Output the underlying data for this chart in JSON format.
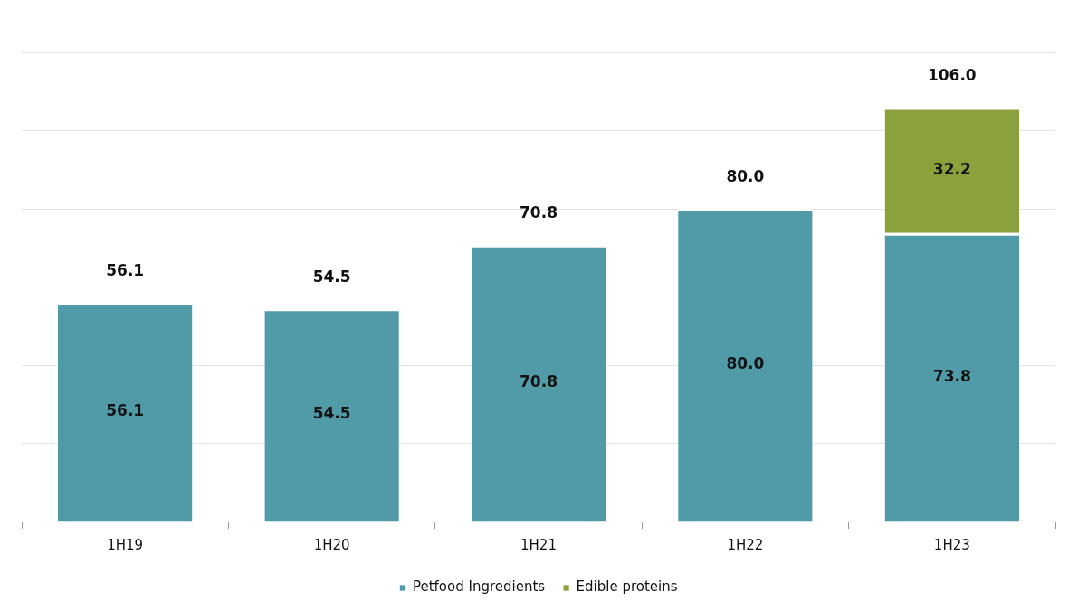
{
  "chart_data": {
    "type": "bar",
    "stacked": true,
    "categories": [
      "1H19",
      "1H20",
      "1H21",
      "1H22",
      "1H23"
    ],
    "series": [
      {
        "name": "Petfood Ingredients",
        "color": "#519aa8",
        "values": [
          56.1,
          54.5,
          70.8,
          80.0,
          73.8
        ],
        "value_labels": [
          "56.1",
          "54.5",
          "70.8",
          "80.0",
          "73.8"
        ]
      },
      {
        "name": "Edible proteins",
        "color": "#8ba13c",
        "values": [
          null,
          null,
          null,
          null,
          32.2
        ],
        "value_labels": [
          null,
          null,
          null,
          null,
          "32.2"
        ]
      }
    ],
    "totals": [
      "56.1",
      "54.5",
      "70.8",
      "80.0",
      "106.0"
    ],
    "grid": "y",
    "tick_labels": "x",
    "legend": "bottom"
  }
}
